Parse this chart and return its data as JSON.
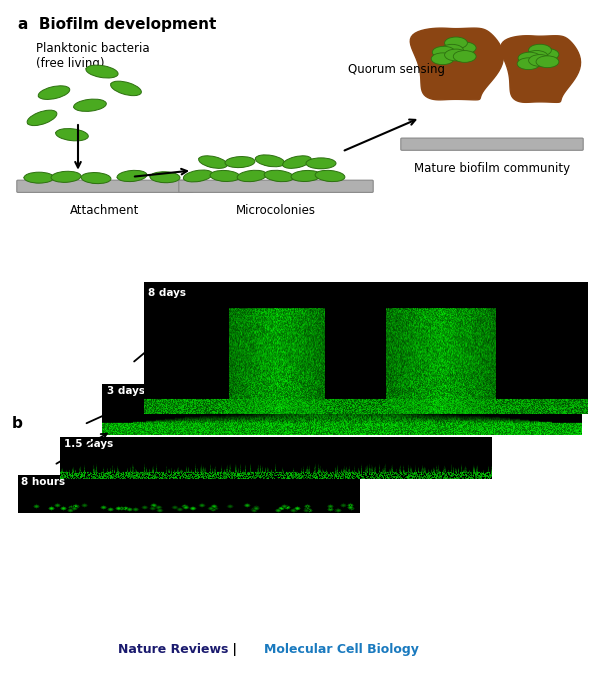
{
  "title_a": "a  Biofilm development",
  "label_planktonic": "Planktonic bacteria\n(free living)",
  "label_attachment": "Attachment",
  "label_microcolonies": "Microcolonies",
  "label_quorum": "Quorum sensing",
  "label_mature": "Mature biofilm community",
  "label_b": "b",
  "panel_b_labels": [
    "8 days",
    "3 days",
    "1.5 days",
    "8 hours"
  ],
  "footer_text1": "Nature Reviews",
  "footer_sep": " | ",
  "footer_text2": "Molecular Cell Biology",
  "bg_color": "#ffffff",
  "bacteria_color": "#4aaa20",
  "bacteria_edge": "#2d7010",
  "surface_color": "#b0b0b0",
  "surface_edge": "#888888",
  "biofilm_brown": "#8B4513",
  "footer_color1": "#1a1a6e",
  "footer_color2": "#1a7abf"
}
